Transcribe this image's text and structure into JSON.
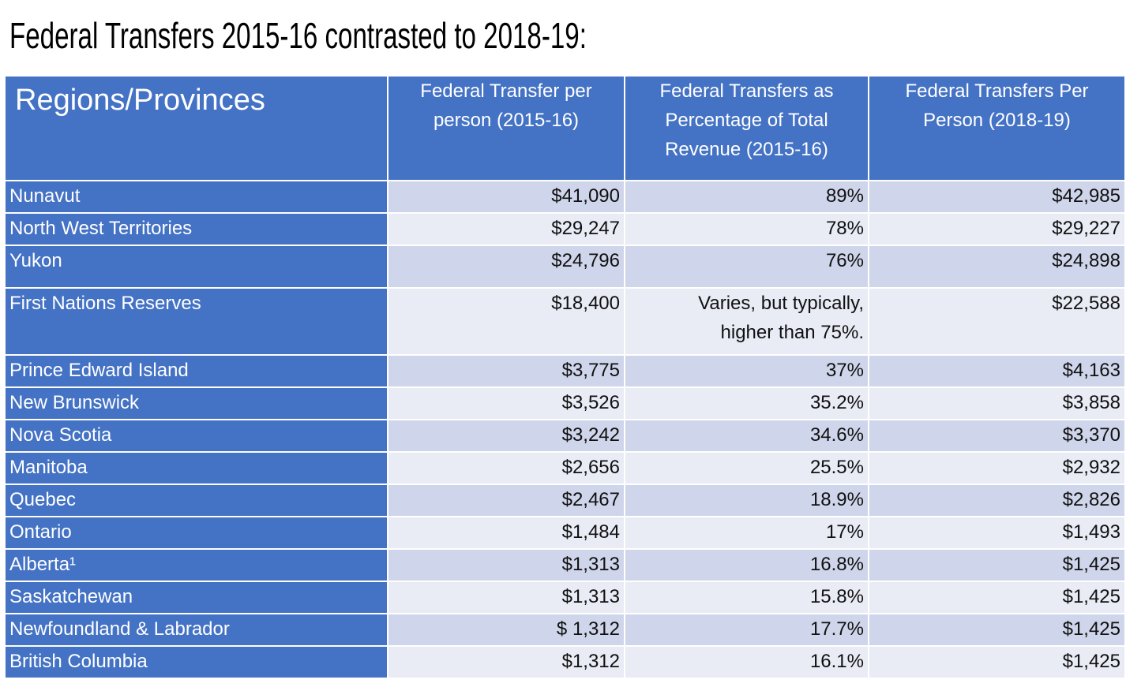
{
  "title": "Federal Transfers 2015-16 contrasted to 2018-19:",
  "table": {
    "header": [
      "Regions/Provinces",
      "Federal Transfer per person (2015-16)",
      "Federal Transfers as Percentage of Total Revenue (2015-16)",
      "Federal Transfers Per Person (2018-19)"
    ],
    "rows": [
      [
        "Nunavut",
        "$41,090",
        "89%",
        "$42,985"
      ],
      [
        "North West Territories",
        "$29,247",
        "78%",
        "$29,227"
      ],
      [
        "Yukon",
        "$24,796",
        "76%",
        "$24,898"
      ],
      [
        "First Nations Reserves",
        "$18,400",
        "Varies, but typically, higher than 75%.",
        "$22,588"
      ],
      [
        "Prince Edward Island",
        "$3,775",
        "37%",
        "$4,163"
      ],
      [
        "New Brunswick",
        "$3,526",
        "35.2%",
        "$3,858"
      ],
      [
        "Nova Scotia",
        "$3,242",
        "34.6%",
        "$3,370"
      ],
      [
        "Manitoba",
        "$2,656",
        "25.5%",
        "$2,932"
      ],
      [
        "Quebec",
        "$2,467",
        "18.9%",
        "$2,826"
      ],
      [
        "Ontario",
        "$1,484",
        "17%",
        "$1,493"
      ],
      [
        "Alberta¹",
        "$1,313",
        "16.8%",
        "$1,425"
      ],
      [
        "Saskatchewan",
        "$1,313",
        "15.8%",
        "$1,425"
      ],
      [
        "Newfoundland & Labrador",
        "$ 1,312",
        "17.7%",
        "$1,425"
      ],
      [
        "British Columbia",
        "$1,312",
        "16.1%",
        "$1,425"
      ]
    ]
  }
}
